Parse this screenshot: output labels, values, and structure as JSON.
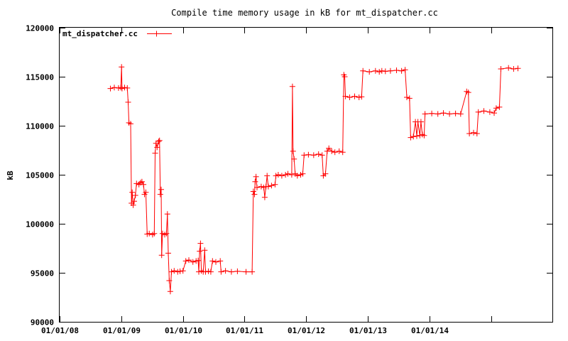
{
  "chart_data": {
    "type": "line",
    "title": "Compile time memory usage in kB for mt_dispatcher.cc",
    "xlabel": "",
    "ylabel": "kB",
    "ylim": [
      90000,
      120000
    ],
    "xlim": [
      "2008-01-01",
      "2015-12-31"
    ],
    "yticks": [
      "90000",
      "95000",
      "100000",
      "105000",
      "110000",
      "115000",
      "120000"
    ],
    "xticks": [
      {
        "label": "01/01/08",
        "date": "2008-01-01"
      },
      {
        "label": "01/01/09",
        "date": "2009-01-01"
      },
      {
        "label": "01/01/10",
        "date": "2010-01-01"
      },
      {
        "label": "01/01/11",
        "date": "2011-01-01"
      },
      {
        "label": "01/01/12",
        "date": "2012-01-01"
      },
      {
        "label": "01/01/13",
        "date": "2013-01-01"
      },
      {
        "label": "01/01/14",
        "date": "2014-01-01"
      }
    ],
    "grid": false,
    "legend_position": "top-left",
    "colors": {
      "series": "#ff0000",
      "axis": "#000000"
    },
    "series": [
      {
        "name": "mt_dispatcher.cc",
        "marker": "plus",
        "points": [
          [
            "2008-10-28",
            113800
          ],
          [
            "2008-11-20",
            113900
          ],
          [
            "2008-12-15",
            113850
          ],
          [
            "2008-12-29",
            113900
          ],
          [
            "2009-01-02",
            116000
          ],
          [
            "2009-01-05",
            113800
          ],
          [
            "2009-01-20",
            113900
          ],
          [
            "2009-02-05",
            113850
          ],
          [
            "2009-02-10",
            112400
          ],
          [
            "2009-02-15",
            110300
          ],
          [
            "2009-02-25",
            110200
          ],
          [
            "2009-03-02",
            102100
          ],
          [
            "2009-03-06",
            103200
          ],
          [
            "2009-03-12",
            101900
          ],
          [
            "2009-03-18",
            102300
          ],
          [
            "2009-03-25",
            102900
          ],
          [
            "2009-04-01",
            104100
          ],
          [
            "2009-04-15",
            104000
          ],
          [
            "2009-04-25",
            104200
          ],
          [
            "2009-05-03",
            104300
          ],
          [
            "2009-05-12",
            104000
          ],
          [
            "2009-05-18",
            103000
          ],
          [
            "2009-05-26",
            103200
          ],
          [
            "2009-06-03",
            98950
          ],
          [
            "2009-06-15",
            99000
          ],
          [
            "2009-07-05",
            98900
          ],
          [
            "2009-07-15",
            99000
          ],
          [
            "2009-07-20",
            107200
          ],
          [
            "2009-07-25",
            108200
          ],
          [
            "2009-08-01",
            107800
          ],
          [
            "2009-08-10",
            108400
          ],
          [
            "2009-08-15",
            108500
          ],
          [
            "2009-08-20",
            103000
          ],
          [
            "2009-08-25",
            103500
          ],
          [
            "2009-08-28",
            96800
          ],
          [
            "2009-09-02",
            99000
          ],
          [
            "2009-09-15",
            98900
          ],
          [
            "2009-09-25",
            99000
          ],
          [
            "2009-10-01",
            101000
          ],
          [
            "2009-10-06",
            97000
          ],
          [
            "2009-10-12",
            94200
          ],
          [
            "2009-10-18",
            93100
          ],
          [
            "2009-10-25",
            95100
          ],
          [
            "2009-11-10",
            95200
          ],
          [
            "2009-12-01",
            95100
          ],
          [
            "2009-12-15",
            95150
          ],
          [
            "2010-01-01",
            95200
          ],
          [
            "2010-01-18",
            96200
          ],
          [
            "2010-02-05",
            96300
          ],
          [
            "2010-03-01",
            96100
          ],
          [
            "2010-03-20",
            96200
          ],
          [
            "2010-04-01",
            96250
          ],
          [
            "2010-04-05",
            95100
          ],
          [
            "2010-04-10",
            97200
          ],
          [
            "2010-04-15",
            98000
          ],
          [
            "2010-04-20",
            95200
          ],
          [
            "2010-05-01",
            95100
          ],
          [
            "2010-05-10",
            97300
          ],
          [
            "2010-05-15",
            95100
          ],
          [
            "2010-06-01",
            95150
          ],
          [
            "2010-06-15",
            95100
          ],
          [
            "2010-06-25",
            96200
          ],
          [
            "2010-07-15",
            96100
          ],
          [
            "2010-08-10",
            96200
          ],
          [
            "2010-08-15",
            95100
          ],
          [
            "2010-09-10",
            95200
          ],
          [
            "2010-10-15",
            95100
          ],
          [
            "2010-11-20",
            95150
          ],
          [
            "2011-01-10",
            95100
          ],
          [
            "2011-02-15",
            95100
          ],
          [
            "2011-02-22",
            103300
          ],
          [
            "2011-03-01",
            103000
          ],
          [
            "2011-03-05",
            104300
          ],
          [
            "2011-03-10",
            104800
          ],
          [
            "2011-03-16",
            103700
          ],
          [
            "2011-04-10",
            103800
          ],
          [
            "2011-04-25",
            103700
          ],
          [
            "2011-05-01",
            102700
          ],
          [
            "2011-05-08",
            103800
          ],
          [
            "2011-05-15",
            104900
          ],
          [
            "2011-05-22",
            103800
          ],
          [
            "2011-06-10",
            103900
          ],
          [
            "2011-07-01",
            104000
          ],
          [
            "2011-07-06",
            104900
          ],
          [
            "2011-07-20",
            105000
          ],
          [
            "2011-08-10",
            104900
          ],
          [
            "2011-09-01",
            105000
          ],
          [
            "2011-09-15",
            105100
          ],
          [
            "2011-10-08",
            105000
          ],
          [
            "2011-10-12",
            114000
          ],
          [
            "2011-10-16",
            107400
          ],
          [
            "2011-10-22",
            106600
          ],
          [
            "2011-10-28",
            105100
          ],
          [
            "2011-11-10",
            104900
          ],
          [
            "2011-11-30",
            105000
          ],
          [
            "2011-12-12",
            105100
          ],
          [
            "2011-12-20",
            107000
          ],
          [
            "2012-01-15",
            107050
          ],
          [
            "2012-02-15",
            107000
          ],
          [
            "2012-03-15",
            107100
          ],
          [
            "2012-04-05",
            107000
          ],
          [
            "2012-04-12",
            104900
          ],
          [
            "2012-04-25",
            105100
          ],
          [
            "2012-05-05",
            107400
          ],
          [
            "2012-05-15",
            107700
          ],
          [
            "2012-06-01",
            107400
          ],
          [
            "2012-06-20",
            107300
          ],
          [
            "2012-07-15",
            107400
          ],
          [
            "2012-08-05",
            107300
          ],
          [
            "2012-08-12",
            115200
          ],
          [
            "2012-08-17",
            115000
          ],
          [
            "2012-08-21",
            113000
          ],
          [
            "2012-09-15",
            112900
          ],
          [
            "2012-10-15",
            113000
          ],
          [
            "2012-11-10",
            112900
          ],
          [
            "2012-11-25",
            112950
          ],
          [
            "2012-12-03",
            115600
          ],
          [
            "2013-01-10",
            115500
          ],
          [
            "2013-02-15",
            115600
          ],
          [
            "2013-03-10",
            115500
          ],
          [
            "2013-03-25",
            115600
          ],
          [
            "2013-04-15",
            115550
          ],
          [
            "2013-05-15",
            115600
          ],
          [
            "2013-06-20",
            115650
          ],
          [
            "2013-07-20",
            115600
          ],
          [
            "2013-08-10",
            115700
          ],
          [
            "2013-08-20",
            112900
          ],
          [
            "2013-09-05",
            112800
          ],
          [
            "2013-09-12",
            108800
          ],
          [
            "2013-09-28",
            108900
          ],
          [
            "2013-10-10",
            110400
          ],
          [
            "2013-10-18",
            108950
          ],
          [
            "2013-10-25",
            110400
          ],
          [
            "2013-11-05",
            109000
          ],
          [
            "2013-11-12",
            110400
          ],
          [
            "2013-11-20",
            109100
          ],
          [
            "2013-12-01",
            109000
          ],
          [
            "2013-12-06",
            111200
          ],
          [
            "2014-01-15",
            111250
          ],
          [
            "2014-02-20",
            111200
          ],
          [
            "2014-03-25",
            111300
          ],
          [
            "2014-04-30",
            111200
          ],
          [
            "2014-06-05",
            111250
          ],
          [
            "2014-07-05",
            111200
          ],
          [
            "2014-08-10",
            113500
          ],
          [
            "2014-08-20",
            113400
          ],
          [
            "2014-08-26",
            109200
          ],
          [
            "2014-09-20",
            109300
          ],
          [
            "2014-10-10",
            109200
          ],
          [
            "2014-10-18",
            111400
          ],
          [
            "2014-11-20",
            111500
          ],
          [
            "2014-12-25",
            111400
          ],
          [
            "2015-01-20",
            111300
          ],
          [
            "2015-02-01",
            111800
          ],
          [
            "2015-02-20",
            111900
          ],
          [
            "2015-03-01",
            115800
          ],
          [
            "2015-04-15",
            115900
          ],
          [
            "2015-05-15",
            115800
          ],
          [
            "2015-06-10",
            115850
          ]
        ]
      }
    ]
  }
}
